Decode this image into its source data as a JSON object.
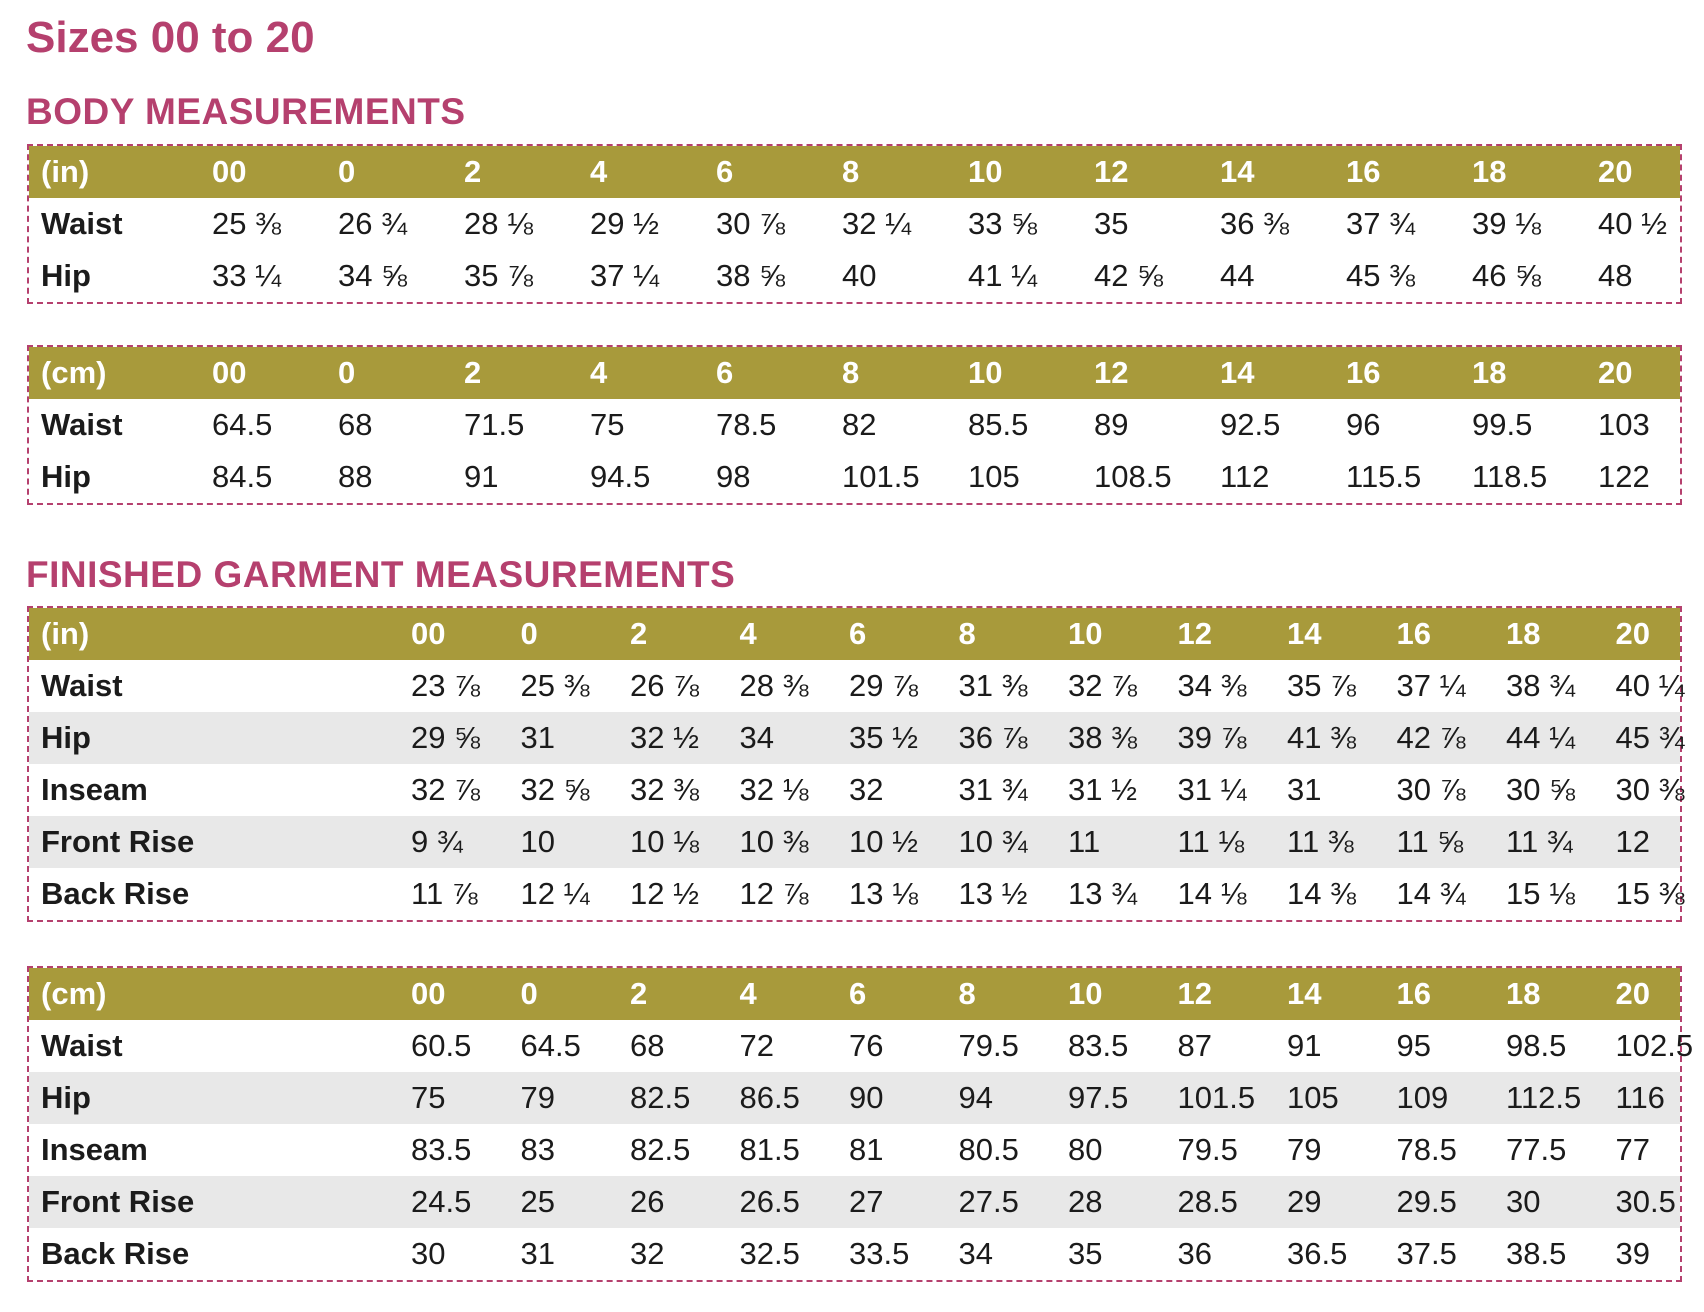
{
  "title": "Sizes 00 to 20",
  "body": {
    "heading": "BODY MEASUREMENTS",
    "inches": {
      "unit": "(in)",
      "sizes": [
        "00",
        "0",
        "2",
        "4",
        "6",
        "8",
        "10",
        "12",
        "14",
        "16",
        "18",
        "20"
      ],
      "rows": [
        {
          "label": "Waist",
          "values": [
            "25 ⅜",
            "26 ¾",
            "28 ⅛",
            "29 ½",
            "30 ⅞",
            "32 ¼",
            "33 ⅝",
            "35",
            "36 ⅜",
            "37 ¾",
            "39 ⅛",
            "40 ½"
          ]
        },
        {
          "label": "Hip",
          "values": [
            "33 ¼",
            "34 ⅝",
            "35 ⅞",
            "37 ¼",
            "38 ⅝",
            "40",
            "41 ¼",
            "42 ⅝",
            "44",
            "45 ⅜",
            "46 ⅝",
            "48"
          ]
        }
      ]
    },
    "cm": {
      "unit": "(cm)",
      "sizes": [
        "00",
        "0",
        "2",
        "4",
        "6",
        "8",
        "10",
        "12",
        "14",
        "16",
        "18",
        "20"
      ],
      "rows": [
        {
          "label": "Waist",
          "values": [
            "64.5",
            "68",
            "71.5",
            "75",
            "78.5",
            "82",
            "85.5",
            "89",
            "92.5",
            "96",
            "99.5",
            "103"
          ]
        },
        {
          "label": "Hip",
          "values": [
            "84.5",
            "88",
            "91",
            "94.5",
            "98",
            "101.5",
            "105",
            "108.5",
            "112",
            "115.5",
            "118.5",
            "122"
          ]
        }
      ]
    }
  },
  "finished": {
    "heading": "FINISHED GARMENT MEASUREMENTS",
    "inches": {
      "unit": "(in)",
      "sizes": [
        "00",
        "0",
        "2",
        "4",
        "6",
        "8",
        "10",
        "12",
        "14",
        "16",
        "18",
        "20"
      ],
      "rows": [
        {
          "label": "Waist",
          "values": [
            "23 ⅞",
            "25 ⅜",
            "26 ⅞",
            "28 ⅜",
            "29 ⅞",
            "31 ⅜",
            "32 ⅞",
            "34 ⅜",
            "35 ⅞",
            "37 ¼",
            "38 ¾",
            "40 ¼"
          ]
        },
        {
          "label": "Hip",
          "values": [
            "29 ⅝",
            "31",
            "32 ½",
            "34",
            "35 ½",
            "36 ⅞",
            "38 ⅜",
            "39 ⅞",
            "41 ⅜",
            "42 ⅞",
            "44 ¼",
            "45 ¾"
          ]
        },
        {
          "label": "Inseam",
          "values": [
            "32 ⅞",
            "32 ⅝",
            "32 ⅜",
            "32 ⅛",
            "32",
            "31 ¾",
            "31 ½",
            "31 ¼",
            "31",
            "30 ⅞",
            "30 ⅝",
            "30 ⅜"
          ]
        },
        {
          "label": "Front Rise",
          "values": [
            "9 ¾",
            "10",
            "10 ⅛",
            "10 ⅜",
            "10 ½",
            "10 ¾",
            "11",
            "11 ⅛",
            "11 ⅜",
            "11 ⅝",
            "11 ¾",
            "12"
          ]
        },
        {
          "label": "Back Rise",
          "values": [
            "11 ⅞",
            "12 ¼",
            "12 ½",
            "12 ⅞",
            "13 ⅛",
            "13 ½",
            "13 ¾",
            "14 ⅛",
            "14 ⅜",
            "14 ¾",
            "15 ⅛",
            "15 ⅜"
          ]
        }
      ]
    },
    "cm": {
      "unit": "(cm)",
      "sizes": [
        "00",
        "0",
        "2",
        "4",
        "6",
        "8",
        "10",
        "12",
        "14",
        "16",
        "18",
        "20"
      ],
      "rows": [
        {
          "label": "Waist",
          "values": [
            "60.5",
            "64.5",
            "68",
            "72",
            "76",
            "79.5",
            "83.5",
            "87",
            "91",
            "95",
            "98.5",
            "102.5"
          ]
        },
        {
          "label": "Hip",
          "values": [
            "75",
            "79",
            "82.5",
            "86.5",
            "90",
            "94",
            "97.5",
            "101.5",
            "105",
            "109",
            "112.5",
            "116"
          ]
        },
        {
          "label": "Inseam",
          "values": [
            "83.5",
            "83",
            "82.5",
            "81.5",
            "81",
            "80.5",
            "80",
            "79.5",
            "79",
            "78.5",
            "77.5",
            "77"
          ]
        },
        {
          "label": "Front Rise",
          "values": [
            "24.5",
            "25",
            "26",
            "26.5",
            "27",
            "27.5",
            "28",
            "28.5",
            "29",
            "29.5",
            "30",
            "30.5"
          ]
        },
        {
          "label": "Back Rise",
          "values": [
            "30",
            "31",
            "32",
            "32.5",
            "33.5",
            "34",
            "35",
            "36",
            "36.5",
            "37.5",
            "38.5",
            "39"
          ]
        }
      ]
    }
  }
}
